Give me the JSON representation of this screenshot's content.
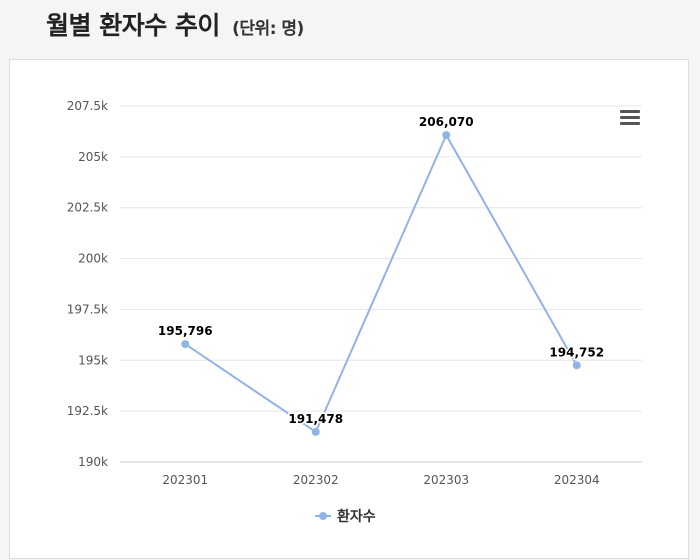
{
  "header": {
    "title": "월별 환자수 추이",
    "unit": "(단위: 명)"
  },
  "chart_data": {
    "type": "line",
    "categories": [
      "202301",
      "202302",
      "202303",
      "202304"
    ],
    "series": [
      {
        "name": "환자수",
        "values": [
          195796,
          191478,
          206070,
          194752
        ]
      }
    ],
    "data_labels": [
      "195,796",
      "191,478",
      "206,070",
      "194,752"
    ],
    "ylim": [
      190000,
      207500
    ],
    "yticks": [
      190000,
      192500,
      195000,
      197500,
      200000,
      202500,
      205000,
      207500
    ],
    "ytick_labels": [
      "190k",
      "192.5k",
      "195k",
      "197.5k",
      "200k",
      "202.5k",
      "205k",
      "207.5k"
    ],
    "grid": true,
    "legend": "bottom-center",
    "color": "#90b4e6"
  },
  "menu": {
    "icon": "hamburger-menu-icon"
  }
}
